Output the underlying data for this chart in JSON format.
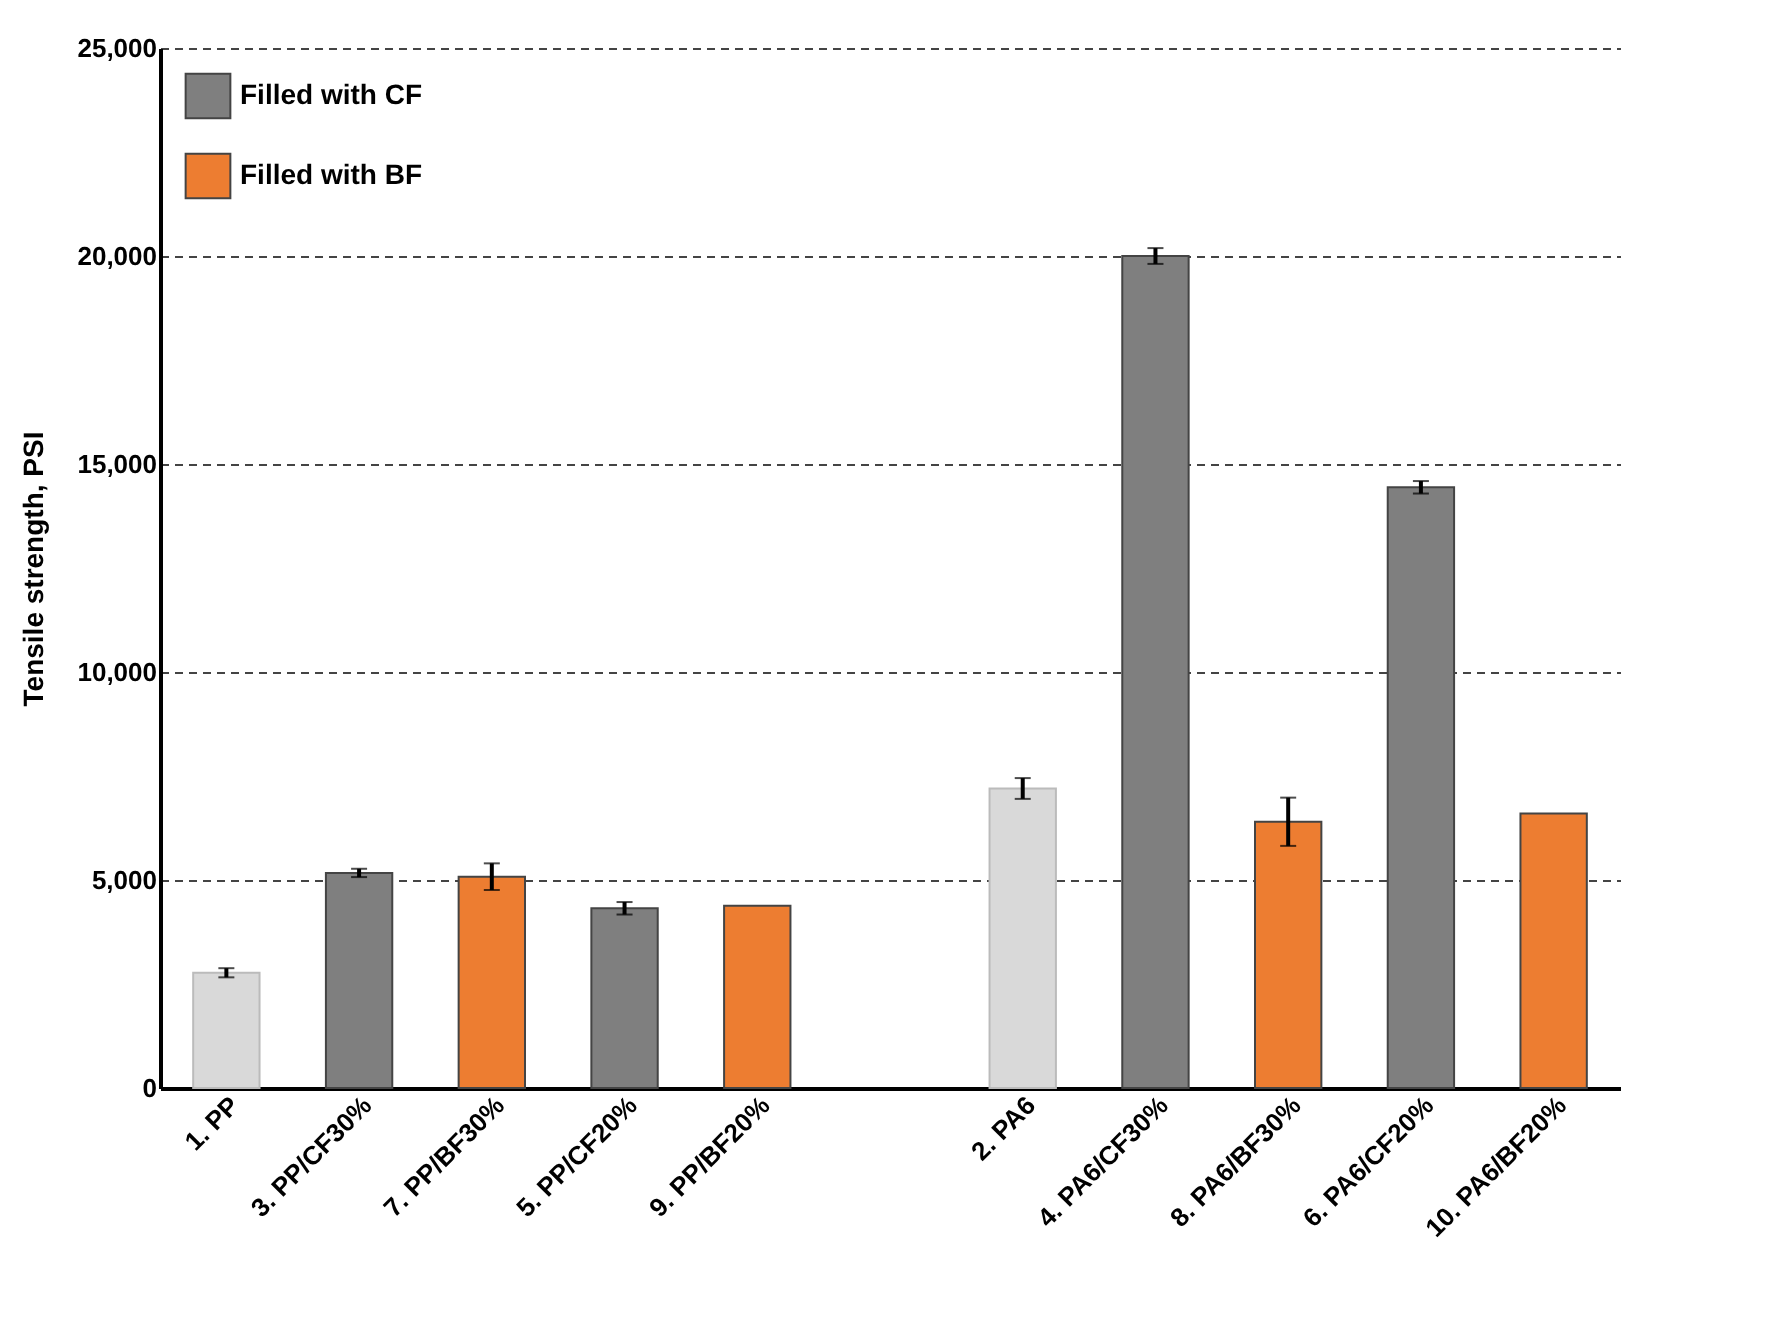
{
  "chart_data": {
    "type": "bar",
    "ylabel": "Tensile strength, PSI",
    "categories": [
      "1. PP",
      "3. PP/CF30%",
      "7. PP/BF30%",
      "5. PP/CF20%",
      "9. PP/BF20%",
      null,
      "2. PA6",
      "4. PA6/CF30%",
      "8. PA6/BF30%",
      "6. PA6/CF20%",
      "10. PA6/BF20%"
    ],
    "series": [
      {
        "color": "#d9d9d9",
        "values": [
          2770,
          null,
          null,
          null,
          null,
          null,
          7200,
          null,
          null,
          null,
          null
        ],
        "errors": [
          110,
          null,
          null,
          null,
          null,
          null,
          250,
          null,
          null,
          null,
          null
        ]
      },
      {
        "name": "Filled with CF",
        "color": "#7f7f7f",
        "values": [
          null,
          5170,
          null,
          4320,
          null,
          null,
          null,
          20000,
          null,
          14440,
          null
        ],
        "errors": [
          null,
          100,
          null,
          150,
          null,
          null,
          null,
          190,
          null,
          150,
          null
        ]
      },
      {
        "name": "Filled with BF",
        "color": "#ed7d31",
        "values": [
          null,
          null,
          5080,
          null,
          4380,
          null,
          null,
          null,
          6400,
          null,
          6600
        ],
        "errors": [
          null,
          null,
          320,
          null,
          null,
          null,
          null,
          null,
          580,
          null,
          null
        ]
      }
    ],
    "ylim": [
      0,
      25000
    ],
    "yticks": [
      0,
      {
        "value": 5000,
        "label": "5,000"
      },
      {
        "value": 10000,
        "label": "10,000"
      },
      {
        "value": 15000,
        "label": "15,000"
      },
      {
        "value": 20000,
        "label": "20,000"
      },
      {
        "value": 25000,
        "label": "25,000"
      }
    ],
    "grid": "y",
    "legend": "top left"
  }
}
